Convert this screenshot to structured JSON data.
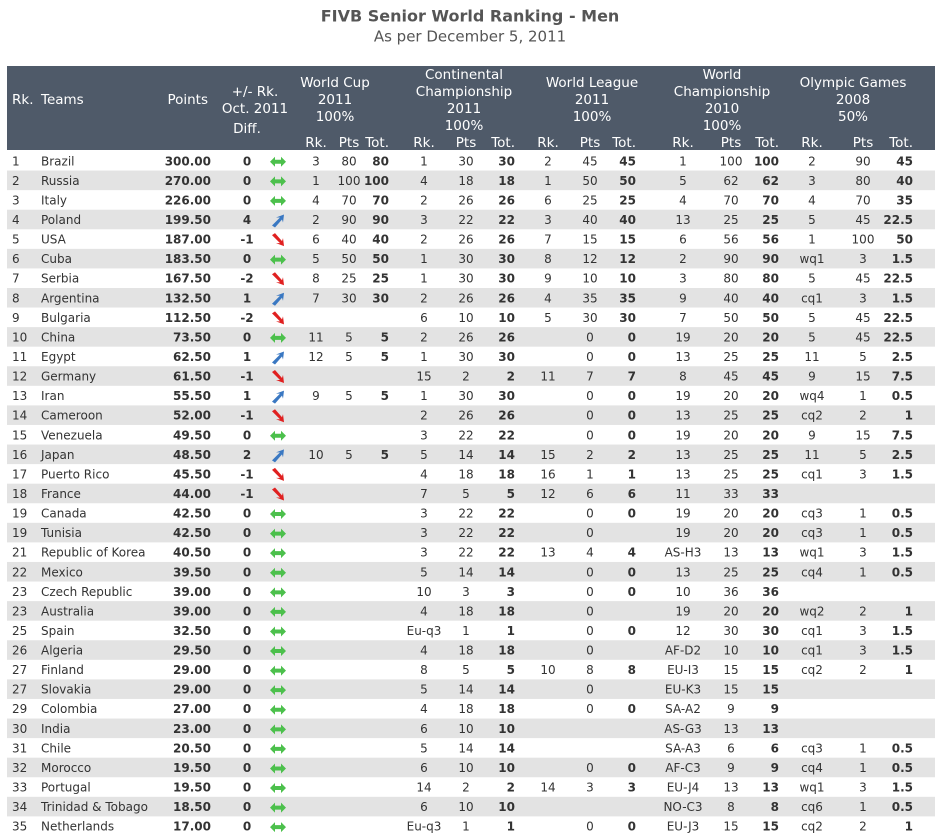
{
  "title": "FIVB Senior World Ranking - Men",
  "subtitle": "As per December 5, 2011",
  "header": {
    "rank": "Rk.",
    "team": "Teams",
    "points": "Points",
    "change": [
      "+/- Rk.",
      "Oct. 2011"
    ],
    "diff": "Diff.",
    "groups": [
      {
        "lines": [
          "World Cup",
          "2011",
          "100%"
        ],
        "columns": [
          "Rk.",
          "Pts",
          "Tot."
        ]
      },
      {
        "lines": [
          "Continental",
          "Championship",
          "2011",
          "100%"
        ],
        "columns": [
          "Rk.",
          "Pts",
          "Tot."
        ]
      },
      {
        "lines": [
          "World League",
          "2011",
          "100%"
        ],
        "columns": [
          "Rk.",
          "Pts",
          "Tot."
        ]
      },
      {
        "lines": [
          "World",
          "Championship",
          "2010",
          "100%"
        ],
        "columns": [
          "Rk.",
          "Pts",
          "Tot."
        ]
      },
      {
        "lines": [
          "Olympic Games",
          "2008",
          "50%"
        ],
        "columns": [
          "Rk.",
          "Pts",
          "Tot."
        ]
      }
    ]
  },
  "rows": [
    [
      "1",
      "Brazil",
      "300.00",
      "0",
      "3",
      "80",
      "80",
      "1",
      "30",
      "30",
      "2",
      "45",
      "45",
      "1",
      "100",
      "100",
      "2",
      "90",
      "45"
    ],
    [
      "2",
      "Russia",
      "270.00",
      "0",
      "1",
      "100",
      "100",
      "4",
      "18",
      "18",
      "1",
      "50",
      "50",
      "5",
      "62",
      "62",
      "3",
      "80",
      "40"
    ],
    [
      "3",
      "Italy",
      "226.00",
      "0",
      "4",
      "70",
      "70",
      "2",
      "26",
      "26",
      "6",
      "25",
      "25",
      "4",
      "70",
      "70",
      "4",
      "70",
      "35"
    ],
    [
      "4",
      "Poland",
      "199.50",
      "4",
      "2",
      "90",
      "90",
      "3",
      "22",
      "22",
      "3",
      "40",
      "40",
      "13",
      "25",
      "25",
      "5",
      "45",
      "22.5"
    ],
    [
      "5",
      "USA",
      "187.00",
      "-1",
      "6",
      "40",
      "40",
      "2",
      "26",
      "26",
      "7",
      "15",
      "15",
      "6",
      "56",
      "56",
      "1",
      "100",
      "50"
    ],
    [
      "6",
      "Cuba",
      "183.50",
      "0",
      "5",
      "50",
      "50",
      "1",
      "30",
      "30",
      "8",
      "12",
      "12",
      "2",
      "90",
      "90",
      "wq1",
      "3",
      "1.5"
    ],
    [
      "7",
      "Serbia",
      "167.50",
      "-2",
      "8",
      "25",
      "25",
      "1",
      "30",
      "30",
      "9",
      "10",
      "10",
      "3",
      "80",
      "80",
      "5",
      "45",
      "22.5"
    ],
    [
      "8",
      "Argentina",
      "132.50",
      "1",
      "7",
      "30",
      "30",
      "2",
      "26",
      "26",
      "4",
      "35",
      "35",
      "9",
      "40",
      "40",
      "cq1",
      "3",
      "1.5"
    ],
    [
      "9",
      "Bulgaria",
      "112.50",
      "-2",
      null,
      null,
      null,
      "6",
      "10",
      "10",
      "5",
      "30",
      "30",
      "7",
      "50",
      "50",
      "5",
      "45",
      "22.5"
    ],
    [
      "10",
      "China",
      "73.50",
      "0",
      "11",
      "5",
      "5",
      "2",
      "26",
      "26",
      null,
      "0",
      "0",
      "19",
      "20",
      "20",
      "5",
      "45",
      "22.5"
    ],
    [
      "11",
      "Egypt",
      "62.50",
      "1",
      "12",
      "5",
      "5",
      "1",
      "30",
      "30",
      null,
      "0",
      "0",
      "13",
      "25",
      "25",
      "11",
      "5",
      "2.5"
    ],
    [
      "12",
      "Germany",
      "61.50",
      "-1",
      null,
      null,
      null,
      "15",
      "2",
      "2",
      "11",
      "7",
      "7",
      "8",
      "45",
      "45",
      "9",
      "15",
      "7.5"
    ],
    [
      "13",
      "Iran",
      "55.50",
      "1",
      "9",
      "5",
      "5",
      "1",
      "30",
      "30",
      null,
      "0",
      "0",
      "19",
      "20",
      "20",
      "wq4",
      "1",
      "0.5"
    ],
    [
      "14",
      "Cameroon",
      "52.00",
      "-1",
      null,
      null,
      null,
      "2",
      "26",
      "26",
      null,
      "0",
      "0",
      "13",
      "25",
      "25",
      "cq2",
      "2",
      "1"
    ],
    [
      "15",
      "Venezuela",
      "49.50",
      "0",
      null,
      null,
      null,
      "3",
      "22",
      "22",
      null,
      "0",
      "0",
      "19",
      "20",
      "20",
      "9",
      "15",
      "7.5"
    ],
    [
      "16",
      "Japan",
      "48.50",
      "2",
      "10",
      "5",
      "5",
      "5",
      "14",
      "14",
      "15",
      "2",
      "2",
      "13",
      "25",
      "25",
      "11",
      "5",
      "2.5"
    ],
    [
      "17",
      "Puerto Rico",
      "45.50",
      "-1",
      null,
      null,
      null,
      "4",
      "18",
      "18",
      "16",
      "1",
      "1",
      "13",
      "25",
      "25",
      "cq1",
      "3",
      "1.5"
    ],
    [
      "18",
      "France",
      "44.00",
      "-1",
      null,
      null,
      null,
      "7",
      "5",
      "5",
      "12",
      "6",
      "6",
      "11",
      "33",
      "33",
      null,
      null,
      null
    ],
    [
      "19",
      "Canada",
      "42.50",
      "0",
      null,
      null,
      null,
      "3",
      "22",
      "22",
      null,
      "0",
      "0",
      "19",
      "20",
      "20",
      "cq3",
      "1",
      "0.5"
    ],
    [
      "19",
      "Tunisia",
      "42.50",
      "0",
      null,
      null,
      null,
      "3",
      "22",
      "22",
      null,
      "0",
      null,
      "19",
      "20",
      "20",
      "cq3",
      "1",
      "0.5"
    ],
    [
      "21",
      "Republic of Korea",
      "40.50",
      "0",
      null,
      null,
      null,
      "3",
      "22",
      "22",
      "13",
      "4",
      "4",
      "AS-H3",
      "13",
      "13",
      "wq1",
      "3",
      "1.5"
    ],
    [
      "22",
      "Mexico",
      "39.50",
      "0",
      null,
      null,
      null,
      "5",
      "14",
      "14",
      null,
      "0",
      "0",
      "13",
      "25",
      "25",
      "cq4",
      "1",
      "0.5"
    ],
    [
      "23",
      "Czech Republic",
      "39.00",
      "0",
      null,
      null,
      null,
      "10",
      "3",
      "3",
      null,
      "0",
      "0",
      "10",
      "36",
      "36",
      null,
      null,
      null
    ],
    [
      "23",
      "Australia",
      "39.00",
      "0",
      null,
      null,
      null,
      "4",
      "18",
      "18",
      null,
      "0",
      null,
      "19",
      "20",
      "20",
      "wq2",
      "2",
      "1"
    ],
    [
      "25",
      "Spain",
      "32.50",
      "0",
      null,
      null,
      null,
      "Eu-q3",
      "1",
      "1",
      null,
      "0",
      "0",
      "12",
      "30",
      "30",
      "cq1",
      "3",
      "1.5"
    ],
    [
      "26",
      "Algeria",
      "29.50",
      "0",
      null,
      null,
      null,
      "4",
      "18",
      "18",
      null,
      "0",
      null,
      "AF-D2",
      "10",
      "10",
      "cq1",
      "3",
      "1.5"
    ],
    [
      "27",
      "Finland",
      "29.00",
      "0",
      null,
      null,
      null,
      "8",
      "5",
      "5",
      "10",
      "8",
      "8",
      "EU-I3",
      "15",
      "15",
      "cq2",
      "2",
      "1"
    ],
    [
      "27",
      "Slovakia",
      "29.00",
      "0",
      null,
      null,
      null,
      "5",
      "14",
      "14",
      null,
      "0",
      null,
      "EU-K3",
      "15",
      "15",
      null,
      null,
      null
    ],
    [
      "29",
      "Colombia",
      "27.00",
      "0",
      null,
      null,
      null,
      "4",
      "18",
      "18",
      null,
      "0",
      "0",
      "SA-A2",
      "9",
      "9",
      null,
      null,
      null
    ],
    [
      "30",
      "India",
      "23.00",
      "0",
      null,
      null,
      null,
      "6",
      "10",
      "10",
      null,
      null,
      null,
      "AS-G3",
      "13",
      "13",
      null,
      null,
      null
    ],
    [
      "31",
      "Chile",
      "20.50",
      "0",
      null,
      null,
      null,
      "5",
      "14",
      "14",
      null,
      null,
      null,
      "SA-A3",
      "6",
      "6",
      "cq3",
      "1",
      "0.5"
    ],
    [
      "32",
      "Morocco",
      "19.50",
      "0",
      null,
      null,
      null,
      "6",
      "10",
      "10",
      null,
      "0",
      "0",
      "AF-C3",
      "9",
      "9",
      "cq4",
      "1",
      "0.5"
    ],
    [
      "33",
      "Portugal",
      "19.50",
      "0",
      null,
      null,
      null,
      "14",
      "2",
      "2",
      "14",
      "3",
      "3",
      "EU-J4",
      "13",
      "13",
      "wq1",
      "3",
      "1.5"
    ],
    [
      "34",
      "Trinidad & Tobago",
      "18.50",
      "0",
      null,
      null,
      null,
      "6",
      "10",
      "10",
      null,
      null,
      null,
      "NO-C3",
      "8",
      "8",
      "cq6",
      "1",
      "0.5"
    ],
    [
      "35",
      "Netherlands",
      "17.00",
      "0",
      null,
      null,
      null,
      "Eu-q3",
      "1",
      "1",
      null,
      "0",
      "0",
      "EU-J3",
      "15",
      "15",
      "cq2",
      "2",
      "1"
    ]
  ]
}
